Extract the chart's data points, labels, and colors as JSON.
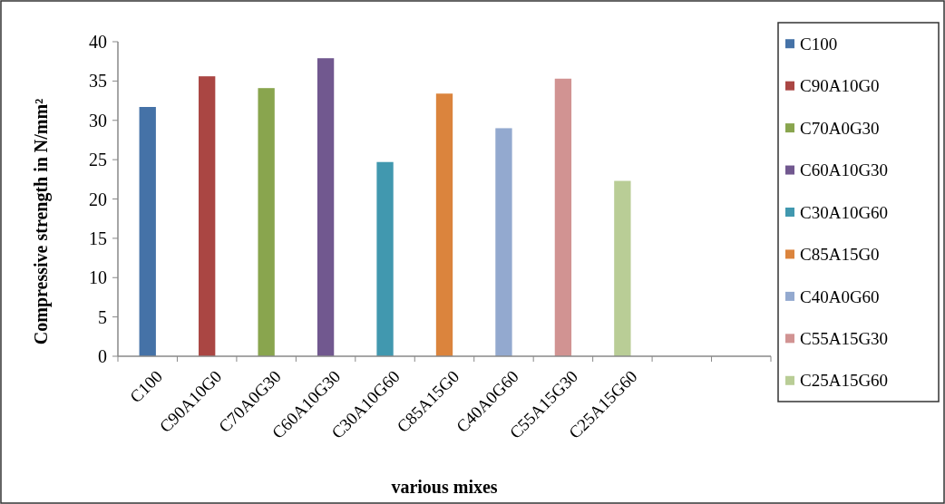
{
  "chart_data": {
    "type": "bar",
    "xlabel": "various mixes",
    "ylabel": "Compressive strength in N/mm²",
    "categories": [
      "C100",
      "C90A10G0",
      "C70A0G30",
      "C60A10G30",
      "C30A10G60",
      "C85A15G0",
      "C40A0G60",
      "C55A15G30",
      "C25A15G60",
      null,
      null
    ],
    "series": [
      {
        "name": "C100",
        "color": "#4572a7",
        "values": [
          31.7,
          null,
          null,
          null,
          null,
          null,
          null,
          null,
          null,
          null,
          null
        ]
      },
      {
        "name": "C90A10G0",
        "color": "#aa4643",
        "values": [
          null,
          35.6,
          null,
          null,
          null,
          null,
          null,
          null,
          null,
          null,
          null
        ]
      },
      {
        "name": "C70A0G30",
        "color": "#89a54e",
        "values": [
          null,
          null,
          34.1,
          null,
          null,
          null,
          null,
          null,
          null,
          null,
          null
        ]
      },
      {
        "name": "C60A10G30",
        "color": "#71588f",
        "values": [
          null,
          null,
          null,
          37.9,
          null,
          null,
          null,
          null,
          null,
          null,
          null
        ]
      },
      {
        "name": "C30A10G60",
        "color": "#4198af",
        "values": [
          null,
          null,
          null,
          null,
          24.7,
          null,
          null,
          null,
          null,
          null,
          null
        ]
      },
      {
        "name": "C85A15G0",
        "color": "#db843d",
        "values": [
          null,
          null,
          null,
          null,
          null,
          33.4,
          null,
          null,
          null,
          null,
          null
        ]
      },
      {
        "name": "C40A0G60",
        "color": "#93a9cf",
        "values": [
          null,
          null,
          null,
          null,
          null,
          null,
          29.0,
          null,
          null,
          null,
          null
        ]
      },
      {
        "name": "C55A15G30",
        "color": "#d19392",
        "values": [
          null,
          null,
          null,
          null,
          null,
          null,
          null,
          35.3,
          null,
          null,
          null
        ]
      },
      {
        "name": "C25A15G60",
        "color": "#b9cd96",
        "values": [
          null,
          null,
          null,
          null,
          null,
          null,
          null,
          null,
          22.3,
          null,
          null
        ]
      }
    ],
    "ylim": [
      0,
      40
    ],
    "yticks": [
      0,
      5,
      10,
      15,
      20,
      25,
      30,
      35,
      40
    ],
    "grid": false,
    "legend": "right"
  }
}
